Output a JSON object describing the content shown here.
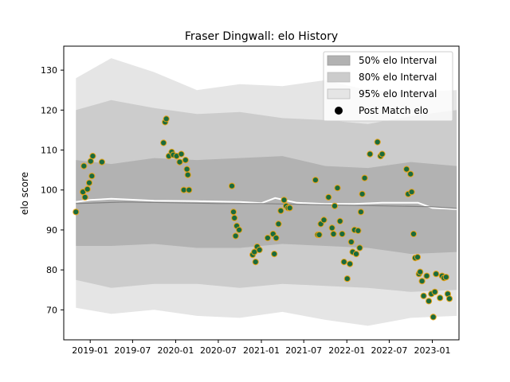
{
  "chart_data": {
    "type": "line",
    "title": "Fraser Dingwall: elo History",
    "xlabel": "",
    "ylabel": "elo score",
    "x_ticks": [
      "2019-01",
      "2019-07",
      "2020-01",
      "2020-07",
      "2021-01",
      "2021-07",
      "2022-01",
      "2022-07",
      "2023-01"
    ],
    "y_ticks": [
      70,
      80,
      90,
      100,
      110,
      120,
      130
    ],
    "xlim": [
      "2018-09-10",
      "2023-04-25"
    ],
    "ylim": [
      62.5,
      136
    ],
    "grid": false,
    "legend": {
      "placement": "top-right",
      "entries": [
        "50% elo Interval",
        "80% elo Interval",
        "95% elo Interval",
        "Post Match elo"
      ]
    },
    "colors": {
      "band50": "#b2b2b2",
      "band80": "#cccccc",
      "band95": "#e5e5e5",
      "mean_line": "#ffffff",
      "median_line": "#808080",
      "marker_fill": "#1a6b3c",
      "marker_edge": "#e8a317"
    },
    "series": [
      {
        "name": "95% elo Interval",
        "type": "band",
        "x": [
          "2018-11-01",
          "2019-04-01",
          "2019-10-01",
          "2020-04-01",
          "2020-10-01",
          "2021-04-01",
          "2021-10-01",
          "2022-04-01",
          "2022-10-01",
          "2023-04-15"
        ],
        "lower": [
          70.5,
          69.0,
          70.0,
          68.5,
          68.0,
          69.5,
          67.5,
          66.0,
          68.0,
          68.5
        ],
        "upper": [
          128.0,
          133.0,
          129.5,
          125.0,
          126.5,
          126.0,
          127.5,
          125.0,
          124.5,
          125.0
        ]
      },
      {
        "name": "80% elo Interval",
        "type": "band",
        "x": [
          "2018-11-01",
          "2019-04-01",
          "2019-10-01",
          "2020-04-01",
          "2020-10-01",
          "2021-04-01",
          "2021-10-01",
          "2022-04-01",
          "2022-10-01",
          "2023-04-15"
        ],
        "lower": [
          77.5,
          75.5,
          76.5,
          76.5,
          75.5,
          76.5,
          76.0,
          75.5,
          74.5,
          75.0
        ],
        "upper": [
          120.0,
          122.5,
          120.5,
          119.0,
          119.5,
          118.0,
          117.5,
          116.5,
          118.5,
          120.0
        ]
      },
      {
        "name": "50% elo Interval",
        "type": "band",
        "x": [
          "2018-11-01",
          "2019-04-01",
          "2019-10-01",
          "2020-04-01",
          "2020-10-01",
          "2021-04-01",
          "2021-10-01",
          "2022-04-01",
          "2022-10-01",
          "2023-04-15"
        ],
        "lower": [
          86.0,
          86.0,
          86.5,
          85.5,
          85.5,
          86.5,
          86.0,
          85.5,
          84.0,
          84.5
        ],
        "upper": [
          107.5,
          106.5,
          108.0,
          107.5,
          108.0,
          108.5,
          106.0,
          105.5,
          107.0,
          106.0
        ]
      },
      {
        "name": "Mean elo",
        "type": "line",
        "x": [
          "2018-11-01",
          "2019-01-01",
          "2019-04-01",
          "2019-10-01",
          "2020-04-01",
          "2020-10-01",
          "2021-01-01",
          "2021-03-01",
          "2021-06-01",
          "2021-10-01",
          "2022-02-01",
          "2022-06-01",
          "2022-11-01",
          "2023-01-01",
          "2023-04-15"
        ],
        "y": [
          97.0,
          97.5,
          97.8,
          97.3,
          97.2,
          97.0,
          96.7,
          98.0,
          96.8,
          96.5,
          96.5,
          96.8,
          96.8,
          95.5,
          95.2
        ]
      },
      {
        "name": "Median elo",
        "type": "line",
        "x": [
          "2018-11-01",
          "2019-06-01",
          "2020-01-01",
          "2020-07-01",
          "2021-01-01",
          "2021-07-01",
          "2022-01-01",
          "2022-07-01",
          "2023-01-01",
          "2023-04-15"
        ],
        "y": [
          96.6,
          97.0,
          96.8,
          96.6,
          96.6,
          96.4,
          96.2,
          96.0,
          95.8,
          95.4
        ]
      },
      {
        "name": "Post Match elo",
        "type": "scatter",
        "x": [
          "2018-11-01",
          "2018-12-01",
          "2018-12-05",
          "2018-12-10",
          "2018-12-20",
          "2018-12-28",
          "2019-01-03",
          "2019-01-08",
          "2019-01-12",
          "2019-02-20",
          "2019-11-10",
          "2019-11-17",
          "2019-11-22",
          "2019-12-03",
          "2019-12-15",
          "2019-12-22",
          "2020-01-05",
          "2020-01-18",
          "2020-01-25",
          "2020-02-05",
          "2020-02-12",
          "2020-02-18",
          "2020-02-22",
          "2020-02-27",
          "2020-08-28",
          "2020-09-04",
          "2020-09-08",
          "2020-09-13",
          "2020-09-18",
          "2020-09-28",
          "2020-11-25",
          "2020-12-02",
          "2020-12-07",
          "2020-12-14",
          "2020-12-24",
          "2021-01-28",
          "2021-02-20",
          "2021-02-25",
          "2021-03-05",
          "2021-03-15",
          "2021-03-25",
          "2021-04-08",
          "2021-04-17",
          "2021-04-25",
          "2021-05-02",
          "2021-08-20",
          "2021-08-30",
          "2021-09-05",
          "2021-09-12",
          "2021-09-25",
          "2021-10-15",
          "2021-10-30",
          "2021-11-05",
          "2021-11-10",
          "2021-11-22",
          "2021-12-03",
          "2021-12-12",
          "2021-12-20",
          "2022-01-03",
          "2022-01-14",
          "2022-01-20",
          "2022-01-26",
          "2022-02-03",
          "2022-02-10",
          "2022-02-18",
          "2022-02-25",
          "2022-03-02",
          "2022-03-08",
          "2022-03-18",
          "2022-04-10",
          "2022-05-12",
          "2022-05-25",
          "2022-06-01",
          "2022-09-13",
          "2022-09-20",
          "2022-09-30",
          "2022-10-05",
          "2022-10-13",
          "2022-10-20",
          "2022-10-30",
          "2022-11-05",
          "2022-11-10",
          "2022-11-18",
          "2022-11-25",
          "2022-12-08",
          "2022-12-17",
          "2022-12-28",
          "2023-01-05",
          "2023-01-12",
          "2023-01-17",
          "2023-02-03",
          "2023-02-12",
          "2023-02-20",
          "2023-03-01",
          "2023-03-08",
          "2023-03-15"
        ],
        "y": [
          94.5,
          99.5,
          106.0,
          98.2,
          100.2,
          101.8,
          107.2,
          103.5,
          108.5,
          107.0,
          111.8,
          117.0,
          117.8,
          108.5,
          109.5,
          108.8,
          108.5,
          107.0,
          109.0,
          100.0,
          107.5,
          105.2,
          103.8,
          100.0,
          101.0,
          94.5,
          93.0,
          88.5,
          91.0,
          90.0,
          83.8,
          84.5,
          82.0,
          85.8,
          85.0,
          88.0,
          89.0,
          84.0,
          88.0,
          91.5,
          94.8,
          97.5,
          96.0,
          95.5,
          95.5,
          102.5,
          88.8,
          88.8,
          91.5,
          92.5,
          98.2,
          90.5,
          89.0,
          96.0,
          100.5,
          92.2,
          89.0,
          82.0,
          77.8,
          81.5,
          87.0,
          84.5,
          90.0,
          84.0,
          89.8,
          85.5,
          94.5,
          99.0,
          103.0,
          109.0,
          112.0,
          108.5,
          109.0,
          105.2,
          99.0,
          104.0,
          99.5,
          89.0,
          83.0,
          83.2,
          79.0,
          79.5,
          77.2,
          73.5,
          78.5,
          72.2,
          74.0,
          68.2,
          74.5,
          79.0,
          73.0,
          78.5,
          78.0,
          78.2,
          74.0,
          72.8
        ]
      }
    ]
  }
}
